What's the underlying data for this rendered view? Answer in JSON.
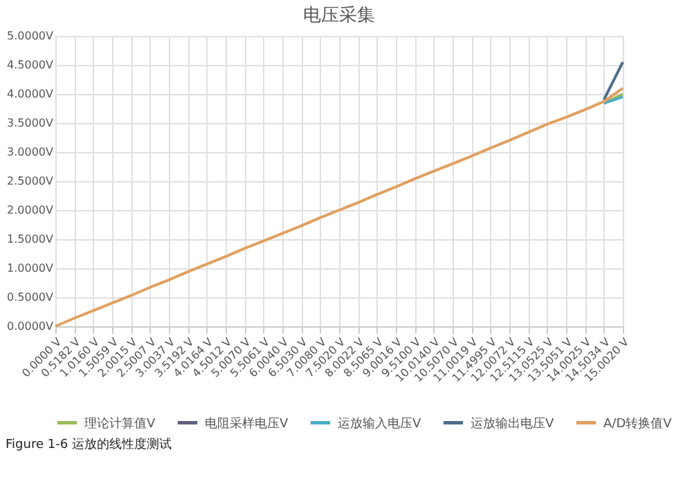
{
  "chart_data": {
    "type": "line",
    "title": "电压采集",
    "categories": [
      "0.0000 V",
      "0.5182 V",
      "1.0160 V",
      "1.5059 V",
      "2.0015 V",
      "2.5007 V",
      "3.0037 V",
      "3.5192 V",
      "4.0164 V",
      "4.5012 V",
      "5.0070 V",
      "5.5061 V",
      "6.0040 V",
      "6.5030 V",
      "7.0080 V",
      "7.5020 V",
      "8.0022 V",
      "8.5065 V",
      "9.0016 V",
      "9.5100 V",
      "10.0140 V",
      "10.5070 V",
      "11.0019 V",
      "11.4995 V",
      "12.0072 V",
      "12.5115 V",
      "13.0525 V",
      "13.5051 V",
      "14.0025 V",
      "14.5034 V",
      "15.0020 V"
    ],
    "series": [
      {
        "name": "理论计算值V",
        "color": "#9bbb59",
        "values": [
          null,
          null,
          null,
          null,
          null,
          null,
          null,
          null,
          null,
          null,
          null,
          null,
          null,
          null,
          null,
          null,
          null,
          null,
          null,
          null,
          null,
          null,
          null,
          null,
          null,
          null,
          null,
          null,
          null,
          3.84,
          4.0
        ]
      },
      {
        "name": "电阻采样电压V",
        "color": "#5f5f7f",
        "values": [
          null,
          null,
          null,
          null,
          null,
          null,
          null,
          null,
          null,
          null,
          null,
          null,
          null,
          null,
          null,
          null,
          null,
          null,
          null,
          null,
          null,
          null,
          null,
          null,
          null,
          null,
          null,
          null,
          null,
          null,
          null
        ]
      },
      {
        "name": "运放输入电压V",
        "color": "#4bacc6",
        "values": [
          null,
          null,
          null,
          null,
          null,
          null,
          null,
          null,
          null,
          null,
          null,
          null,
          null,
          null,
          null,
          null,
          null,
          null,
          null,
          null,
          null,
          null,
          null,
          null,
          null,
          null,
          null,
          null,
          null,
          3.84,
          3.95
        ]
      },
      {
        "name": "运放输出电压V",
        "color": "#4f6d8a",
        "values": [
          null,
          null,
          null,
          null,
          null,
          null,
          null,
          null,
          null,
          null,
          null,
          null,
          null,
          null,
          null,
          null,
          null,
          null,
          null,
          null,
          null,
          null,
          null,
          null,
          null,
          null,
          null,
          null,
          null,
          3.9,
          4.55
        ]
      },
      {
        "name": "A/D转换值V",
        "color": "#e0a060",
        "values": [
          0,
          0.14,
          0.27,
          0.4,
          0.53,
          0.67,
          0.8,
          0.94,
          1.07,
          1.2,
          1.34,
          1.47,
          1.6,
          1.73,
          1.87,
          2.0,
          2.13,
          2.27,
          2.4,
          2.54,
          2.67,
          2.8,
          2.93,
          3.07,
          3.2,
          3.34,
          3.48,
          3.6,
          3.73,
          3.87,
          4.1
        ]
      }
    ],
    "ylim": [
      0,
      5
    ],
    "yticks": [
      {
        "value": 0,
        "label": "0.0000V"
      },
      {
        "value": 0.5,
        "label": "0.5000V"
      },
      {
        "value": 1,
        "label": "1.0000V"
      },
      {
        "value": 1.5,
        "label": "1.5000V"
      },
      {
        "value": 2,
        "label": "2.0000V"
      },
      {
        "value": 2.5,
        "label": "2.5000V"
      },
      {
        "value": 3,
        "label": "3.0000V"
      },
      {
        "value": 3.5,
        "label": "3.5000V"
      },
      {
        "value": 4,
        "label": "4.0000V"
      },
      {
        "value": 4.5,
        "label": "4.5000V"
      },
      {
        "value": 5,
        "label": "5.0000V"
      }
    ],
    "grid": true,
    "legend": "bottom",
    "marker": "none",
    "line_style": "solid",
    "annotations": [
      "Figure 1-6 运放的线性度测试"
    ]
  }
}
